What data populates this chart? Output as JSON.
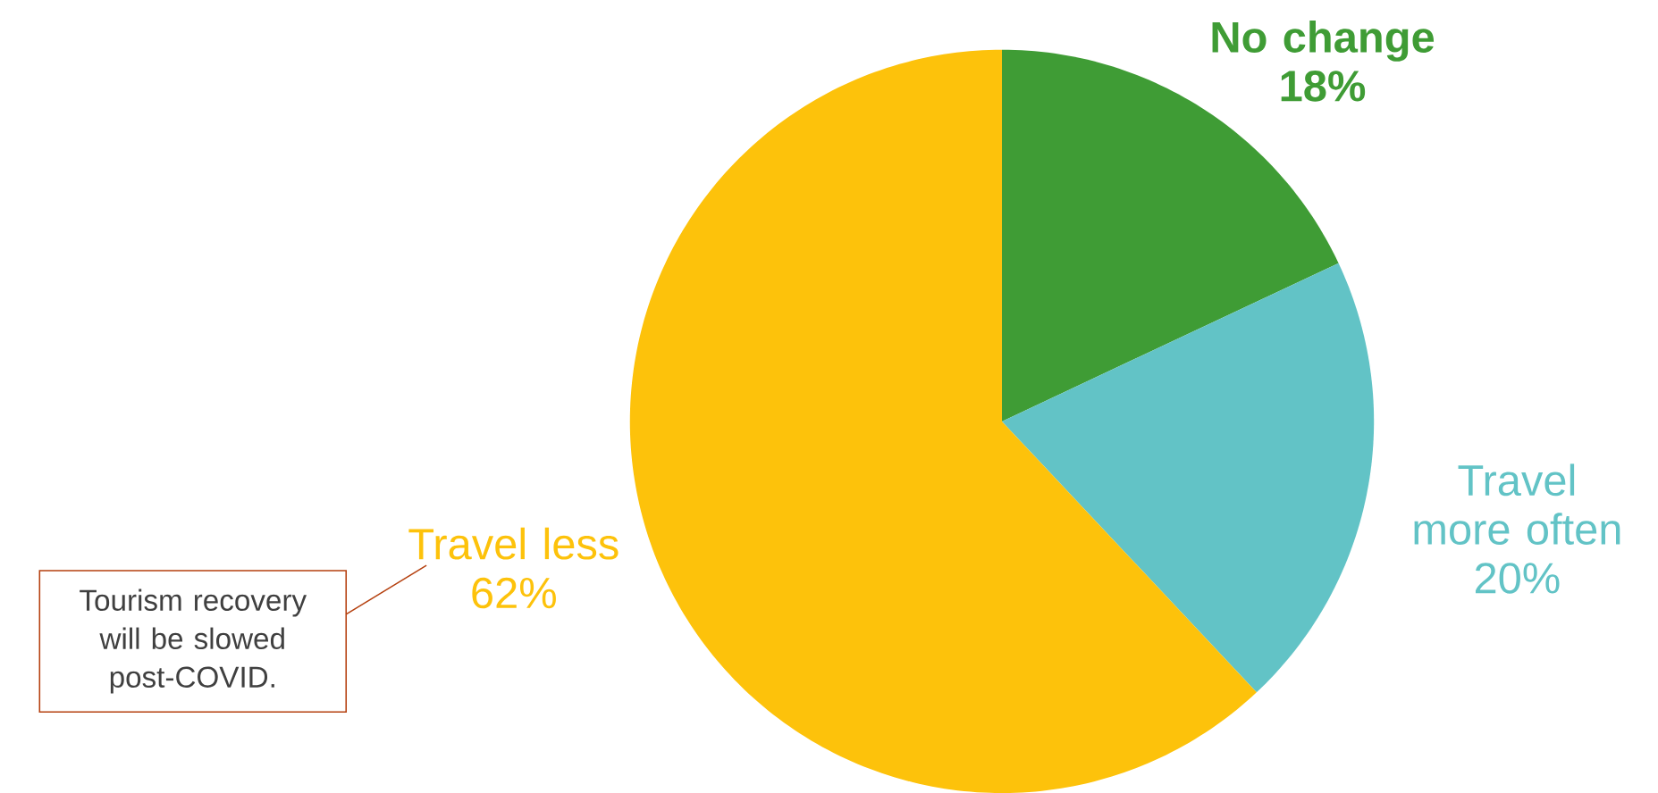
{
  "chart_data": {
    "type": "pie",
    "categories": [
      "No change",
      "Travel more often",
      "Travel less"
    ],
    "values": [
      18,
      20,
      62
    ],
    "value_labels": [
      "18%",
      "20%",
      "62%"
    ],
    "colors": [
      "#3f9c35",
      "#62c3c6",
      "#fdc20b"
    ],
    "annotations": [
      "Tourism recovery will be slowed post-COVID."
    ]
  }
}
